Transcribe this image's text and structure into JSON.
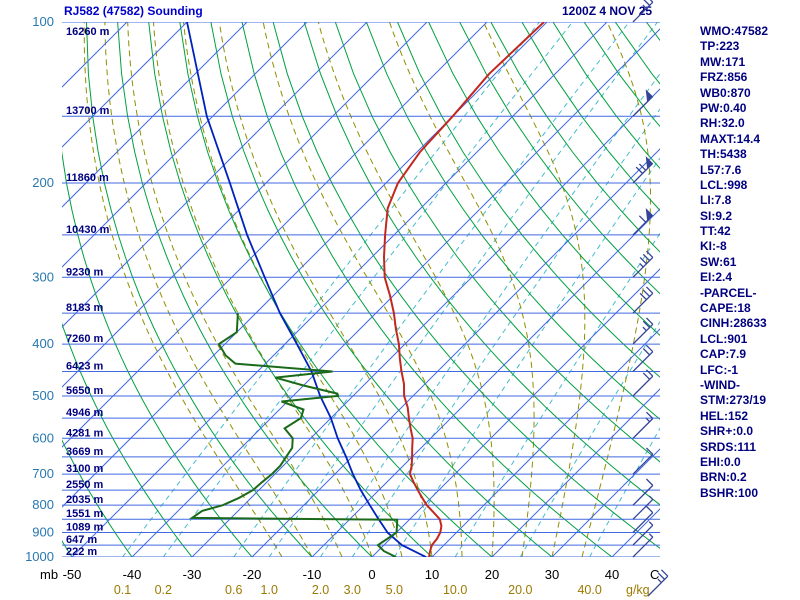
{
  "header": {
    "title": "RJ582 (47582) Sounding",
    "datetime": "1200Z 4 NOV 25"
  },
  "axes": {
    "pressure_unit": "mb",
    "temp_unit": "C",
    "mixing_unit": "g/kg"
  },
  "colors": {
    "grid_blue": "#4169e1",
    "isotherm": "#4169e1",
    "dry_adiabat": "#00a040",
    "moist_adiabat": "#8f8f00",
    "mixing_ratio": "#44bccc",
    "temp_curve": "#c22820",
    "dewpoint_curve": "#1a6a1a",
    "parcel_curve": "#0022bb",
    "barb": "#334499",
    "pressure_label": "#2878b0",
    "height_label": "#000080",
    "temp_label": "#000000",
    "ratio_label": "#9c7a00",
    "panel_text": "#000080"
  },
  "indices": {
    "lines": [
      "WMO:47582",
      "TP:223",
      "MW:171",
      "FRZ:856",
      "WB0:870",
      "PW:0.40",
      "RH:32.0",
      "MAXT:14.4",
      "TH:5438",
      "L57:7.6",
      "LCL:998",
      "LI:7.8",
      "SI:9.2",
      "TT:42",
      "KI:-8",
      "SW:61",
      "EI:2.4",
      "-PARCEL-",
      "CAPE:18",
      "CINH:28633",
      "LCL:901",
      "CAP:7.9",
      "LFC:-1",
      "-WIND-",
      "STM:273/19",
      "HEL:152",
      "SHR+:0.0",
      "SRDS:111",
      "EHI:0.0",
      "BRN:0.2",
      "BSHR:100"
    ]
  },
  "chart_data": {
    "type": "skewt-log-p",
    "station": "RJ582 (47582)",
    "valid": "1200Z 4 NOV 25",
    "pressure_ticks_mb": [
      100,
      200,
      300,
      400,
      500,
      600,
      700,
      800,
      900,
      1000
    ],
    "height_labels": [
      {
        "p": 100,
        "label": "16260 m"
      },
      {
        "p": 150,
        "label": "13700 m"
      },
      {
        "p": 200,
        "label": "11860 m"
      },
      {
        "p": 250,
        "label": "10430 m"
      },
      {
        "p": 300,
        "label": "9230 m"
      },
      {
        "p": 350,
        "label": "8183 m"
      },
      {
        "p": 400,
        "label": "7260 m"
      },
      {
        "p": 450,
        "label": "6423 m"
      },
      {
        "p": 500,
        "label": "5650 m"
      },
      {
        "p": 550,
        "label": "4946 m"
      },
      {
        "p": 600,
        "label": "4281 m"
      },
      {
        "p": 650,
        "label": "3669 m"
      },
      {
        "p": 700,
        "label": "3100 m"
      },
      {
        "p": 750,
        "label": "2550 m"
      },
      {
        "p": 800,
        "label": "2035 m"
      },
      {
        "p": 850,
        "label": "1551 m"
      },
      {
        "p": 900,
        "label": "1089 m"
      },
      {
        "p": 950,
        "label": "647 m"
      },
      {
        "p": 1000,
        "label": "222 m"
      }
    ],
    "temp_axis_c": [
      -50,
      -40,
      -30,
      -20,
      -10,
      0,
      10,
      20,
      30,
      40
    ],
    "mixing_ratio_lines_gkg": [
      "0.1",
      "0.2",
      "0.6",
      "1.0",
      "2.0",
      "3.0",
      "5.0",
      "10.0",
      "20.0",
      "40.0"
    ],
    "grid": {
      "isotherms_c": [
        -130,
        -120,
        -110,
        -100,
        -90,
        -80,
        -70,
        -60,
        -50,
        -40,
        -30,
        -20,
        -10,
        0,
        10,
        20,
        30,
        40
      ],
      "dry_adiabats_c": [
        -50,
        -40,
        -30,
        -20,
        -10,
        0,
        10,
        20,
        30,
        40,
        50,
        60,
        70,
        80,
        90,
        100,
        110,
        120,
        130,
        140,
        150,
        160,
        170,
        180
      ],
      "moist_adiabats_c": [
        -15,
        -10,
        -5,
        0,
        5,
        10,
        15,
        20,
        25,
        30,
        35
      ]
    },
    "temperature_profile": [
      [
        100,
        -60.5
      ],
      [
        125,
        -61
      ],
      [
        150,
        -60
      ],
      [
        175,
        -59.5
      ],
      [
        200,
        -58
      ],
      [
        223,
        -55.5
      ],
      [
        250,
        -51.5
      ],
      [
        275,
        -48
      ],
      [
        300,
        -44.5
      ],
      [
        325,
        -40.5
      ],
      [
        350,
        -37
      ],
      [
        375,
        -34
      ],
      [
        400,
        -31
      ],
      [
        425,
        -28.5
      ],
      [
        450,
        -26
      ],
      [
        475,
        -23.5
      ],
      [
        500,
        -21.5
      ],
      [
        525,
        -19
      ],
      [
        550,
        -17
      ],
      [
        575,
        -15
      ],
      [
        600,
        -13
      ],
      [
        625,
        -11.5
      ],
      [
        650,
        -10
      ],
      [
        675,
        -8.6
      ],
      [
        700,
        -7.5
      ],
      [
        725,
        -5.5
      ],
      [
        750,
        -3.5
      ],
      [
        775,
        -1.5
      ],
      [
        800,
        0.5
      ],
      [
        825,
        2.8
      ],
      [
        850,
        5
      ],
      [
        875,
        6.4
      ],
      [
        900,
        7.3
      ],
      [
        925,
        7.8
      ],
      [
        950,
        8
      ],
      [
        975,
        8.7
      ],
      [
        1000,
        9.5
      ]
    ],
    "dewpoint_profile": [
      [
        350,
        -63
      ],
      [
        380,
        -60
      ],
      [
        400,
        -61
      ],
      [
        420,
        -58
      ],
      [
        435,
        -55
      ],
      [
        450,
        -37.5
      ],
      [
        462,
        -46
      ],
      [
        478,
        -40
      ],
      [
        495,
        -33
      ],
      [
        500,
        -32.5
      ],
      [
        512,
        -41
      ],
      [
        530,
        -36
      ],
      [
        550,
        -35
      ],
      [
        575,
        -36
      ],
      [
        600,
        -33
      ],
      [
        625,
        -31.5
      ],
      [
        650,
        -31
      ],
      [
        675,
        -30.5
      ],
      [
        700,
        -30.5
      ],
      [
        725,
        -30.8
      ],
      [
        750,
        -31
      ],
      [
        775,
        -32
      ],
      [
        800,
        -33.5
      ],
      [
        820,
        -36
      ],
      [
        845,
        -36.5
      ],
      [
        852,
        -2
      ],
      [
        875,
        -1
      ],
      [
        900,
        0
      ],
      [
        925,
        -0.5
      ],
      [
        950,
        -1
      ],
      [
        975,
        1
      ],
      [
        1000,
        4
      ]
    ],
    "parcel_line": [
      [
        100,
        -120
      ],
      [
        150,
        -101
      ],
      [
        200,
        -86
      ],
      [
        250,
        -74.5
      ],
      [
        300,
        -64.5
      ],
      [
        350,
        -56
      ],
      [
        400,
        -48
      ],
      [
        450,
        -41
      ],
      [
        500,
        -35.5
      ],
      [
        550,
        -30
      ],
      [
        600,
        -25.5
      ],
      [
        650,
        -21
      ],
      [
        700,
        -17
      ],
      [
        750,
        -13
      ],
      [
        800,
        -9
      ],
      [
        850,
        -5.2
      ],
      [
        900,
        -1.5
      ],
      [
        950,
        3
      ],
      [
        1000,
        9
      ]
    ],
    "wind_barbs": [
      {
        "p": 100,
        "pennants": 0,
        "full": 2,
        "half": 1
      },
      {
        "p": 150,
        "pennants": 1,
        "full": 0,
        "half": 0
      },
      {
        "p": 200,
        "pennants": 1,
        "full": 2,
        "half": 0
      },
      {
        "p": 250,
        "pennants": 1,
        "full": 1,
        "half": 0
      },
      {
        "p": 300,
        "pennants": 0,
        "full": 3,
        "half": 1
      },
      {
        "p": 350,
        "pennants": 0,
        "full": 3,
        "half": 0
      },
      {
        "p": 400,
        "pennants": 0,
        "full": 2,
        "half": 1
      },
      {
        "p": 450,
        "pennants": 0,
        "full": 2,
        "half": 0
      },
      {
        "p": 500,
        "pennants": 0,
        "full": 2,
        "half": 0
      },
      {
        "p": 600,
        "pennants": 0,
        "full": 1,
        "half": 1
      },
      {
        "p": 700,
        "pennants": 0,
        "full": 1,
        "half": 0
      },
      {
        "p": 800,
        "pennants": 0,
        "full": 1,
        "half": 0
      },
      {
        "p": 850,
        "pennants": 0,
        "full": 0,
        "half": 1
      },
      {
        "p": 900,
        "pennants": 0,
        "full": 1,
        "half": 0
      },
      {
        "p": 950,
        "pennants": 0,
        "full": 0,
        "half": 1
      },
      {
        "p": 1000,
        "pennants": 0,
        "full": 0,
        "half": 1
      }
    ],
    "surface_barb": {
      "pennants": 0,
      "full": 2,
      "half": 1
    }
  }
}
